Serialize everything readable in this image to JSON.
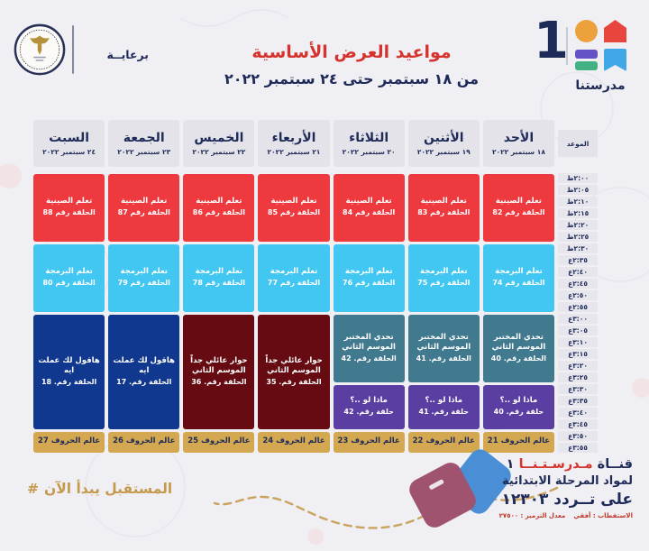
{
  "header": {
    "sponsor_label": "برعايــة",
    "title": "مواعيد العرض الأساسية",
    "subtitle": "من ١٨ سبتمبر حتى ٢٤ سبتمبر ٢٠٢٢",
    "logo": {
      "digit": "1",
      "wordmark": "مدرستنا"
    }
  },
  "table": {
    "time_header": "الموعد",
    "days": [
      {
        "name": "الأحد",
        "date": "١٨ سبتمبر ٢٠٢٢"
      },
      {
        "name": "الأثنين",
        "date": "١٩ سبتمبر ٢٠٢٢"
      },
      {
        "name": "الثلاثاء",
        "date": "٢٠ سبتمبر ٢٠٢٢"
      },
      {
        "name": "الأربعاء",
        "date": "٢١ سبتمبر ٢٠٢٢"
      },
      {
        "name": "الخميس",
        "date": "٢٢ سبتمبر ٢٠٢٢"
      },
      {
        "name": "الجمعة",
        "date": "٢٣ سبتمبر ٢٠٢٢"
      },
      {
        "name": "السبت",
        "date": "٢٤ سبتمبر ٢٠٢٢"
      }
    ],
    "times": [
      "٢:٠٠ظ",
      "٢:٠٥ظ",
      "٢:١٠ظ",
      "٢:١٥ظ",
      "٢:٢٠ظ",
      "٢:٢٥ظ",
      "٢:٣٠ظ",
      "٢:٣٥ع",
      "٢:٤٠ع",
      "٢:٤٥ع",
      "٢:٥٠ع",
      "٢:٥٥ع",
      "٣:٠٠ع",
      "٣:٠٥ع",
      "٣:١٠ع",
      "٣:١٥ع",
      "٣:٢٠ع",
      "٣:٢٥ع",
      "٣:٣٠ع",
      "٣:٣٥ع",
      "٣:٤٠ع",
      "٣:٤٥ع",
      "٣:٥٠ع",
      "٣:٥٥ع"
    ],
    "cells": [
      {
        "day": 0,
        "row_start": 1,
        "row_end": 7,
        "color": "red",
        "title": "تعلم الصينية",
        "episode": "الحلقة رقم 82"
      },
      {
        "day": 0,
        "row_start": 7,
        "row_end": 13,
        "color": "cyan",
        "title": "تعلم البرمجة",
        "episode": "الحلقة رقم 74"
      },
      {
        "day": 0,
        "row_start": 13,
        "row_end": 19,
        "color": "teal",
        "title": "تحدي المختبر الموسم الثاني",
        "episode": "الحلقة رقم. 40"
      },
      {
        "day": 0,
        "row_start": 19,
        "row_end": 23,
        "color": "purple",
        "title": "ماذا لو ..؟",
        "episode": "حلقة رقم. 40"
      },
      {
        "day": 0,
        "row_start": 23,
        "row_end": 25,
        "color": "gold",
        "title": "عالم الحروف 21",
        "episode": ""
      },
      {
        "day": 1,
        "row_start": 1,
        "row_end": 7,
        "color": "red",
        "title": "تعلم الصينية",
        "episode": "الحلقة رقم 83"
      },
      {
        "day": 1,
        "row_start": 7,
        "row_end": 13,
        "color": "cyan",
        "title": "تعلم البرمجة",
        "episode": "الحلقة رقم 75"
      },
      {
        "day": 1,
        "row_start": 13,
        "row_end": 19,
        "color": "teal",
        "title": "تحدي المختبر الموسم الثاني",
        "episode": "الحلقة رقم. 41"
      },
      {
        "day": 1,
        "row_start": 19,
        "row_end": 23,
        "color": "purple",
        "title": "ماذا لو ..؟",
        "episode": "حلقة رقم. 41"
      },
      {
        "day": 1,
        "row_start": 23,
        "row_end": 25,
        "color": "gold",
        "title": "عالم الحروف 22",
        "episode": ""
      },
      {
        "day": 2,
        "row_start": 1,
        "row_end": 7,
        "color": "red",
        "title": "تعلم الصينية",
        "episode": "الحلقة رقم 84"
      },
      {
        "day": 2,
        "row_start": 7,
        "row_end": 13,
        "color": "cyan",
        "title": "تعلم البرمجة",
        "episode": "الحلقة رقم 76"
      },
      {
        "day": 2,
        "row_start": 13,
        "row_end": 19,
        "color": "teal",
        "title": "تحدي المختبر الموسم الثاني",
        "episode": "الحلقة رقم. 42"
      },
      {
        "day": 2,
        "row_start": 19,
        "row_end": 23,
        "color": "purple",
        "title": "ماذا لو ..؟",
        "episode": "حلقة رقم. 42"
      },
      {
        "day": 2,
        "row_start": 23,
        "row_end": 25,
        "color": "gold",
        "title": "عالم الحروف 23",
        "episode": ""
      },
      {
        "day": 3,
        "row_start": 1,
        "row_end": 7,
        "color": "red",
        "title": "تعلم الصينية",
        "episode": "الحلقة رقم 85"
      },
      {
        "day": 3,
        "row_start": 7,
        "row_end": 13,
        "color": "cyan",
        "title": "تعلم البرمجة",
        "episode": "الحلقة رقم 77"
      },
      {
        "day": 3,
        "row_start": 13,
        "row_end": 23,
        "color": "maroon",
        "title": "حوار عائلي جداً الموسم الثاني",
        "episode": "الحلقة رقم. 35"
      },
      {
        "day": 3,
        "row_start": 23,
        "row_end": 25,
        "color": "gold",
        "title": "عالم الحروف 24",
        "episode": ""
      },
      {
        "day": 4,
        "row_start": 1,
        "row_end": 7,
        "color": "red",
        "title": "تعلم الصينية",
        "episode": "الحلقة رقم 86"
      },
      {
        "day": 4,
        "row_start": 7,
        "row_end": 13,
        "color": "cyan",
        "title": "تعلم البرمجة",
        "episode": "الحلقة رقم 78"
      },
      {
        "day": 4,
        "row_start": 13,
        "row_end": 23,
        "color": "maroon",
        "title": "حوار عائلي جداً الموسم الثاني",
        "episode": "الحلقة رقم. 36"
      },
      {
        "day": 4,
        "row_start": 23,
        "row_end": 25,
        "color": "gold",
        "title": "عالم الحروف 25",
        "episode": ""
      },
      {
        "day": 5,
        "row_start": 1,
        "row_end": 7,
        "color": "red",
        "title": "تعلم الصينية",
        "episode": "الحلقة رقم 87"
      },
      {
        "day": 5,
        "row_start": 7,
        "row_end": 13,
        "color": "cyan",
        "title": "تعلم البرمجة",
        "episode": "الحلقة رقم 79"
      },
      {
        "day": 5,
        "row_start": 13,
        "row_end": 23,
        "color": "navy",
        "title": "هاقول لك عملت ايه",
        "episode": "الحلقة رقم. 17"
      },
      {
        "day": 5,
        "row_start": 23,
        "row_end": 25,
        "color": "gold",
        "title": "عالم الحروف 26",
        "episode": ""
      },
      {
        "day": 6,
        "row_start": 1,
        "row_end": 7,
        "color": "red",
        "title": "تعلم الصينية",
        "episode": "الحلقة رقم 88"
      },
      {
        "day": 6,
        "row_start": 7,
        "row_end": 13,
        "color": "cyan",
        "title": "تعلم البرمجة",
        "episode": "الحلقة رقم 80"
      },
      {
        "day": 6,
        "row_start": 13,
        "row_end": 23,
        "color": "navy",
        "title": "هاقول لك عملت ايه",
        "episode": "الحلقة رقم. 18"
      },
      {
        "day": 6,
        "row_start": 23,
        "row_end": 25,
        "color": "gold",
        "title": "عالم الحروف 27",
        "episode": ""
      }
    ]
  },
  "footer": {
    "channel_prefix": "قنــاة",
    "channel_name": "مـدرسـتـنــا",
    "channel_number": "١",
    "audience_line": "لمواد المرحلة الابتدائية",
    "frequency_line": "على تــردد ١٢٣٠٣",
    "tech_polarization": "الاستقطاب : أفقي",
    "tech_symbol_rate": "معدل الترميز : ٢٧٥٠٠",
    "hashtag_symbol": "#",
    "hashtag_text": "المستقبل يبدأ الآن"
  },
  "colors": {
    "red": "#ee3a3f",
    "cyan": "#41c7f2",
    "teal": "#41798f",
    "purple": "#5a3ea1",
    "maroon": "#660b12",
    "navy": "#10388f",
    "gold": "#d4a851",
    "box_gray": "#e4e3ea",
    "pill_gray": "#e7e6ec",
    "text_navy": "#1e2b58",
    "title_red": "#d5342e",
    "hash_gold": "#c59a4d",
    "bg": "#f0eff4"
  }
}
